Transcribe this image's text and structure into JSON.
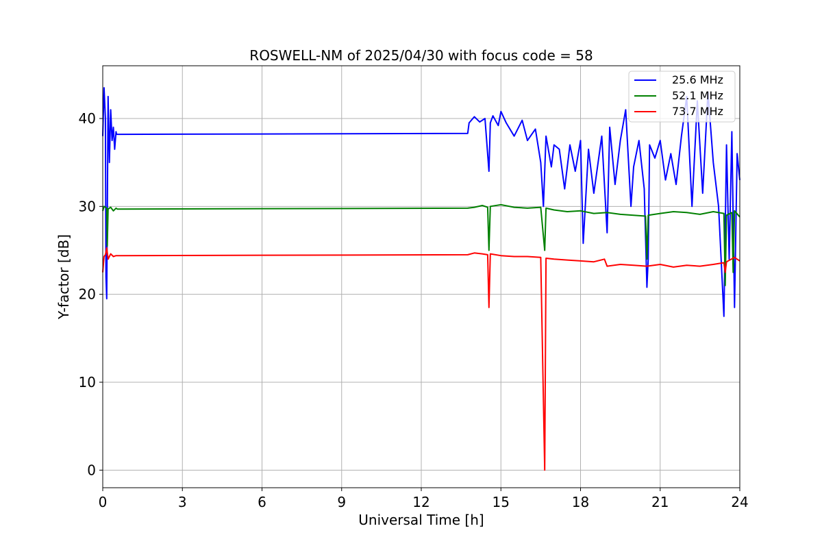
{
  "chart_data": {
    "type": "line",
    "title": "ROSWELL-NM of 2025/04/30 with focus code = 58",
    "xlabel": "Universal Time [h]",
    "ylabel": "Y-factor [dB]",
    "xlim": [
      0,
      24
    ],
    "ylim": [
      -2,
      46
    ],
    "xticks": [
      0,
      3,
      6,
      9,
      12,
      15,
      18,
      21,
      24
    ],
    "yticks": [
      0,
      10,
      20,
      30,
      40
    ],
    "grid": true,
    "legend_position": "top-right",
    "series": [
      {
        "name": "25.6 MHz",
        "color": "#0000ff",
        "x": [
          0.0,
          0.05,
          0.1,
          0.12,
          0.15,
          0.2,
          0.25,
          0.3,
          0.35,
          0.4,
          0.45,
          0.5,
          0.52,
          0.55,
          13.75,
          13.8,
          14.0,
          14.2,
          14.4,
          14.55,
          14.6,
          14.7,
          14.9,
          15.0,
          15.2,
          15.5,
          15.8,
          16.0,
          16.3,
          16.5,
          16.6,
          16.7,
          16.9,
          17.0,
          17.2,
          17.4,
          17.6,
          17.8,
          18.0,
          18.1,
          18.3,
          18.5,
          18.8,
          19.0,
          19.1,
          19.3,
          19.5,
          19.7,
          19.9,
          20.0,
          20.2,
          20.4,
          20.5,
          20.55,
          20.6,
          20.8,
          21.0,
          21.2,
          21.4,
          21.6,
          21.8,
          22.0,
          22.2,
          22.4,
          22.6,
          22.8,
          23.0,
          23.2,
          23.4,
          23.5,
          23.6,
          23.7,
          23.8,
          23.9,
          24.0
        ],
        "y": [
          38.0,
          43.5,
          40.0,
          22.0,
          19.5,
          42.5,
          35.0,
          41.0,
          37.5,
          39.0,
          36.5,
          38.5,
          38.2,
          38.2,
          38.3,
          39.5,
          40.2,
          39.6,
          40.0,
          34.0,
          39.5,
          40.3,
          39.2,
          40.8,
          39.5,
          38.0,
          39.8,
          37.5,
          38.8,
          35.0,
          30.0,
          38.0,
          34.5,
          37.0,
          36.5,
          32.0,
          37.0,
          34.0,
          37.5,
          25.8,
          36.5,
          31.5,
          38.0,
          27.0,
          39.0,
          32.5,
          37.5,
          41.0,
          30.0,
          34.5,
          37.5,
          32.0,
          20.8,
          24.0,
          37.0,
          35.5,
          37.5,
          33.0,
          36.0,
          32.5,
          38.0,
          42.5,
          30.0,
          42.0,
          31.5,
          43.0,
          35.0,
          30.0,
          17.5,
          37.0,
          24.0,
          38.5,
          18.5,
          36.0,
          33.0
        ]
      },
      {
        "name": "52.1 MHz",
        "color": "#008000",
        "x": [
          0.0,
          0.05,
          0.15,
          0.17,
          0.2,
          0.3,
          0.4,
          0.5,
          0.55,
          13.75,
          14.0,
          14.3,
          14.5,
          14.55,
          14.6,
          15.0,
          15.5,
          16.0,
          16.5,
          16.65,
          16.7,
          17.0,
          17.5,
          18.0,
          18.5,
          19.0,
          19.5,
          20.0,
          20.45,
          20.5,
          20.55,
          21.0,
          21.5,
          22.0,
          22.5,
          23.0,
          23.4,
          23.45,
          23.5,
          23.7,
          23.75,
          23.8,
          24.0
        ],
        "y": [
          29.5,
          30.0,
          29.8,
          25.5,
          29.7,
          29.9,
          29.5,
          29.8,
          29.7,
          29.8,
          29.9,
          30.1,
          29.9,
          25.0,
          30.0,
          30.2,
          29.9,
          29.8,
          29.9,
          25.0,
          29.8,
          29.6,
          29.4,
          29.5,
          29.2,
          29.3,
          29.1,
          29.0,
          28.9,
          24.0,
          29.0,
          29.2,
          29.4,
          29.3,
          29.1,
          29.4,
          29.2,
          21.0,
          29.0,
          29.3,
          22.5,
          29.5,
          28.8
        ]
      },
      {
        "name": "73.7 MHz",
        "color": "#ff0000",
        "x": [
          0.0,
          0.05,
          0.1,
          0.15,
          0.2,
          0.3,
          0.4,
          0.5,
          0.55,
          13.75,
          14.0,
          14.3,
          14.5,
          14.55,
          14.6,
          15.0,
          15.5,
          16.0,
          16.5,
          16.65,
          16.7,
          17.0,
          17.5,
          18.0,
          18.5,
          18.9,
          19.0,
          19.5,
          20.0,
          20.5,
          21.0,
          21.5,
          22.0,
          22.5,
          23.0,
          23.4,
          23.45,
          23.5,
          23.8,
          24.0
        ],
        "y": [
          22.5,
          24.3,
          24.5,
          25.3,
          24.0,
          24.6,
          24.3,
          24.4,
          24.4,
          24.5,
          24.7,
          24.6,
          24.5,
          18.5,
          24.6,
          24.4,
          24.3,
          24.3,
          24.2,
          0.0,
          24.1,
          24.0,
          23.9,
          23.8,
          23.7,
          24.0,
          23.2,
          23.4,
          23.3,
          23.2,
          23.4,
          23.1,
          23.3,
          23.2,
          23.4,
          23.6,
          22.5,
          23.7,
          24.2,
          23.8
        ]
      }
    ]
  }
}
